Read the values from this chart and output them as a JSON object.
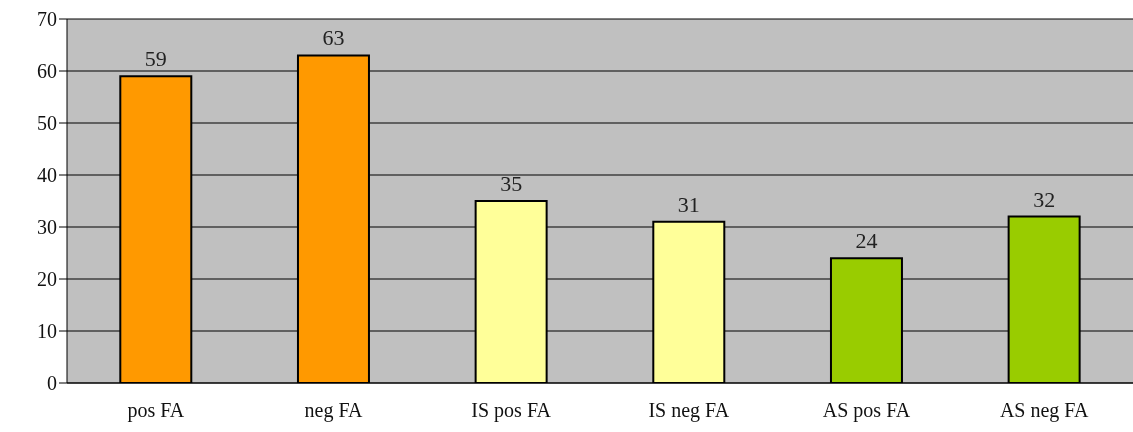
{
  "chart_data": {
    "type": "bar",
    "categories": [
      "pos FA",
      "neg FA",
      "IS pos FA",
      "IS neg FA",
      "AS pos FA",
      "AS neg FA"
    ],
    "values": [
      59,
      63,
      35,
      31,
      24,
      32
    ],
    "colors": [
      "#ff9900",
      "#ff9900",
      "#ffff99",
      "#ffff99",
      "#99cc00",
      "#99cc00"
    ],
    "ylim": [
      0,
      70
    ],
    "yticks": [
      0,
      10,
      20,
      30,
      40,
      50,
      60,
      70
    ],
    "grid": "y",
    "data_labels": true
  }
}
